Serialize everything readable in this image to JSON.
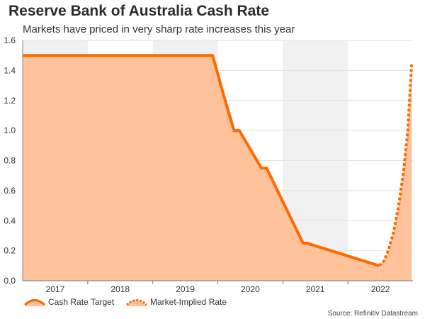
{
  "chart_data": {
    "type": "area",
    "title": "Reserve Bank of Australia Cash Rate",
    "subtitle": "Markets have priced in very sharp rate increases this year",
    "source": "Source: Refinitiv Datastream",
    "xlabel": "",
    "ylabel": "",
    "xlim": [
      2016.5,
      2022.5
    ],
    "ylim": [
      0,
      1.6
    ],
    "y_ticks": [
      "0.0",
      "0.2",
      "0.4",
      "0.6",
      "0.8",
      "1.0",
      "1.2",
      "1.4",
      "1.6"
    ],
    "x_tick_labels": [
      "2017",
      "2018",
      "2019",
      "2020",
      "2021",
      "2022"
    ],
    "shaded_year_bands": [
      "2017",
      "2019",
      "2021"
    ],
    "grid": true,
    "legend_position": "bottom-left",
    "series": [
      {
        "name": "Cash Rate Target",
        "style": "solid",
        "color": "#ff6a00",
        "x": [
          2016.5,
          2019.42,
          2019.58,
          2019.75,
          2019.83,
          2020.17,
          2020.25,
          2020.81,
          2020.87,
          2021.98
        ],
        "y": [
          1.5,
          1.5,
          1.25,
          1.0,
          1.0,
          0.75,
          0.75,
          0.25,
          0.25,
          0.1
        ]
      },
      {
        "name": "Market-Implied Rate",
        "style": "dotted",
        "color": "#ff6a00",
        "x": [
          2021.98,
          2022.05,
          2022.12,
          2022.2,
          2022.28,
          2022.36,
          2022.42,
          2022.48
        ],
        "y": [
          0.1,
          0.13,
          0.2,
          0.32,
          0.5,
          0.74,
          1.0,
          1.44
        ]
      }
    ]
  }
}
